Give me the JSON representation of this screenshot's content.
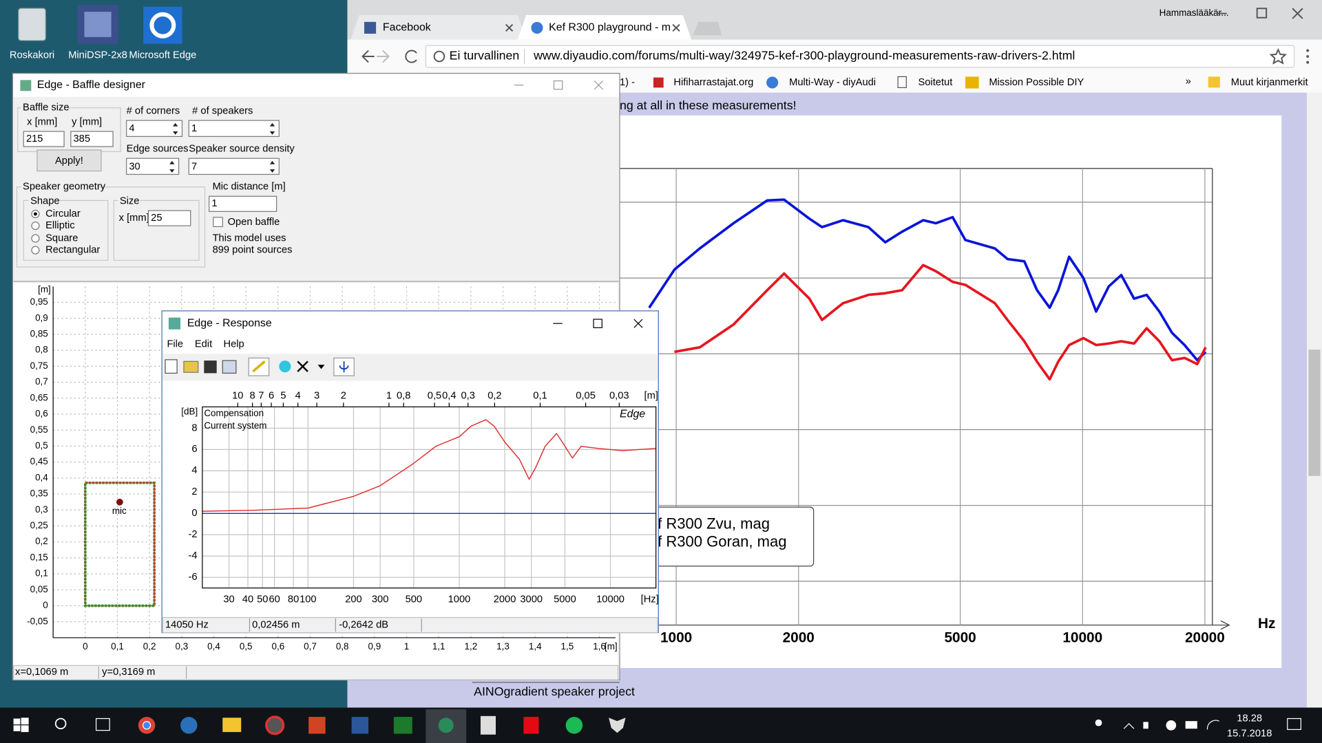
{
  "desktop_icons": [
    "Roskakori",
    "MiniDSP-2x8",
    "Microsoft Edge"
  ],
  "browser": {
    "tabs": [
      "Facebook",
      "Kef R300 playground - m"
    ],
    "profile": "Hammaslääkär...",
    "security": "Ei turvallinen",
    "url": "www.diyaudio.com/forums/multi-way/324975-kef-r300-playground-measurements-raw-drivers-2.html",
    "bookmarks": [
      "1) -",
      "Hifiharrastajat.org",
      "Multi-Way - diyAudi",
      "Soitetut",
      "Mission Possible DIY"
    ],
    "overflow": "»",
    "other_bookmarks": "Muut kirjanmerkit",
    "post_text": "ng at all in these measurements!",
    "signature": "AINOgradient speaker project"
  },
  "baffle_designer": {
    "title": "Edge - Baffle designer",
    "baffle_size": "Baffle size",
    "x_label": "x [mm]",
    "y_label": "y [mm]",
    "x_value": "215",
    "y_value": "385",
    "apply": "Apply!",
    "corners_label": "# of corners",
    "corners": "4",
    "speakers_label": "# of speakers",
    "speakers": "1",
    "edge_sources_label": "Edge sources",
    "edge_sources": "30",
    "density_label": "Speaker source density",
    "density": "7",
    "geometry": "Speaker geometry",
    "shape": "Shape",
    "shapes": [
      "Circular",
      "Elliptic",
      "Square",
      "Rectangular"
    ],
    "size": "Size",
    "size_label": "x [mm]",
    "size_value": "25",
    "mic_distance_label": "Mic distance [m]",
    "mic_distance": "1",
    "open_baffle": "Open baffle",
    "model_note": [
      "This model uses",
      "899 point sources"
    ],
    "mic_label": "mic",
    "status": [
      "x=0,1069 m",
      "y=0,3169 m"
    ]
  },
  "response_window": {
    "title": "Edge - Response",
    "menu": [
      "File",
      "Edit",
      "Help"
    ],
    "watermark": "Edge",
    "status": [
      "14050 Hz",
      "0,02456 m",
      "-0,2642 dB"
    ]
  },
  "taskbar": {
    "time": "18.28",
    "date": "15.7.2018"
  },
  "chart_data": [
    {
      "type": "line",
      "xlabel": "Hz",
      "xscale": "log",
      "grid": true,
      "xlim": [
        726,
        20870
      ],
      "ylim": [
        0,
        60
      ],
      "xticks": [
        1000,
        2000,
        5000,
        10000,
        20000
      ],
      "x": [
        858,
        990,
        1143,
        1384,
        1675,
        1843,
        2127,
        2285,
        2574,
        2972,
        3270,
        3597,
        4054,
        4355,
        4790,
        5148,
        6085,
        6536,
        7190,
        7727,
        8302,
        8710,
        9268,
        10050,
        10800,
        11600,
        12450,
        13390,
        14380,
        15450,
        16600,
        17830,
        19150,
        20090
      ],
      "series": [
        {
          "name": "f R300 Zvu, mag",
          "color": "#0a14d8",
          "values": [
            41.7,
            46.7,
            49.5,
            52.8,
            55.8,
            55.9,
            53.4,
            52.3,
            53.2,
            52.3,
            50.3,
            51.7,
            53.2,
            52.8,
            53.6,
            50.6,
            49.5,
            48.1,
            47.8,
            44.0,
            41.7,
            44.0,
            48.4,
            45.6,
            41.2,
            44.5,
            46.0,
            42.9,
            43.4,
            41.2,
            38.4,
            36.8,
            34.8,
            35.9
          ]
        },
        {
          "name": "f R300 Goran, mag",
          "color": "#e8141e",
          "values": [
            null,
            35.9,
            36.5,
            39.5,
            44.0,
            46.2,
            42.9,
            40.1,
            42.3,
            43.4,
            43.6,
            44.0,
            47.3,
            46.5,
            45.1,
            44.7,
            42.3,
            40.1,
            37.3,
            34.6,
            32.3,
            34.6,
            36.8,
            37.7,
            36.8,
            37.0,
            37.3,
            37.0,
            39.0,
            37.3,
            34.8,
            35.1,
            34.3,
            36.5
          ]
        }
      ]
    },
    {
      "type": "line",
      "xscale": "log",
      "grid": true,
      "x_unit": "[Hz]",
      "y_unit": "[dB]",
      "top_unit": "[m]",
      "xlim": [
        20,
        20000
      ],
      "ylim": [
        -7,
        10
      ],
      "xticks": [
        30,
        40,
        50,
        60,
        80,
        100,
        200,
        300,
        500,
        1000,
        2000,
        3000,
        5000,
        10000
      ],
      "yticks": [
        8,
        6,
        4,
        2,
        0,
        -2,
        -4,
        -6
      ],
      "top_ticks": [
        10,
        8,
        7,
        6,
        5,
        4,
        3,
        2,
        1,
        {
          "value": 0.8,
          "label": "0,8"
        },
        {
          "value": 0.5,
          "label": "0,5"
        },
        {
          "value": 0.4,
          "label": "0,4"
        },
        {
          "value": 0.3,
          "label": "0,3"
        },
        {
          "value": 0.2,
          "label": "0,2"
        },
        {
          "value": 0.1,
          "label": "0,1"
        },
        {
          "value": 0.05,
          "label": "0,05"
        },
        {
          "value": 0.03,
          "label": "0,03"
        }
      ],
      "series": [
        {
          "name": "Compensation",
          "color": "#2a2ad0",
          "x": [
            20,
            20000
          ],
          "values": [
            0,
            0
          ]
        },
        {
          "name": "Current system",
          "color": "#e03030",
          "x": [
            20,
            44,
            100,
            200,
            300,
            500,
            700,
            1000,
            1200,
            1500,
            1700,
            2000,
            2500,
            2900,
            3200,
            3700,
            4400,
            4800,
            5600,
            6400,
            8300,
            12000,
            20000
          ],
          "values": [
            0.2,
            0.3,
            0.5,
            1.6,
            2.6,
            4.7,
            6.3,
            7.2,
            8.2,
            8.8,
            8.2,
            6.7,
            5.1,
            3.2,
            4.3,
            6.3,
            7.5,
            6.7,
            5.2,
            6.3,
            6.1,
            5.9,
            6.1
          ]
        }
      ]
    },
    {
      "type": "baffle",
      "grid": true,
      "x_unit": "[m]",
      "y_unit": "[m]",
      "xlim": [
        -0.1,
        1.65
      ],
      "ylim": [
        -0.1,
        1.0
      ],
      "xticks": [
        0,
        {
          "value": 0.1,
          "label": "0,1"
        },
        {
          "value": 0.2,
          "label": "0,2"
        },
        {
          "value": 0.3,
          "label": "0,3"
        },
        {
          "value": 0.4,
          "label": "0,4"
        },
        {
          "value": 0.5,
          "label": "0,5"
        },
        {
          "value": 0.6,
          "label": "0,6"
        },
        {
          "value": 0.7,
          "label": "0,7"
        },
        {
          "value": 0.8,
          "label": "0,8"
        },
        {
          "value": 0.9,
          "label": "0,9"
        },
        1,
        {
          "value": 1.1,
          "label": "1,1"
        },
        {
          "value": 1.2,
          "label": "1,2"
        },
        {
          "value": 1.3,
          "label": "1,3"
        },
        {
          "value": 1.4,
          "label": "1,4"
        },
        {
          "value": 1.5,
          "label": "1,5"
        },
        {
          "value": 1.6,
          "label": "1,6"
        }
      ],
      "yticks": [
        {
          "value": 0.95,
          "label": "0,95"
        },
        {
          "value": 0.9,
          "label": "0,9"
        },
        {
          "value": 0.85,
          "label": "0,85"
        },
        {
          "value": 0.8,
          "label": "0,8"
        },
        {
          "value": 0.75,
          "label": "0,75"
        },
        {
          "value": 0.7,
          "label": "0,7"
        },
        {
          "value": 0.65,
          "label": "0,65"
        },
        {
          "value": 0.6,
          "label": "0,6"
        },
        {
          "value": 0.55,
          "label": "0,55"
        },
        {
          "value": 0.5,
          "label": "0,5"
        },
        {
          "value": 0.45,
          "label": "0,45"
        },
        {
          "value": 0.4,
          "label": "0,4"
        },
        {
          "value": 0.35,
          "label": "0,35"
        },
        {
          "value": 0.3,
          "label": "0,3"
        },
        {
          "value": 0.25,
          "label": "0,25"
        },
        {
          "value": 0.2,
          "label": "0,2"
        },
        {
          "value": 0.15,
          "label": "0,15"
        },
        {
          "value": 0.1,
          "label": "0,1"
        },
        {
          "value": 0.05,
          "label": "0,05"
        },
        0,
        {
          "value": -0.05,
          "label": "-0,05"
        }
      ]
    }
  ]
}
